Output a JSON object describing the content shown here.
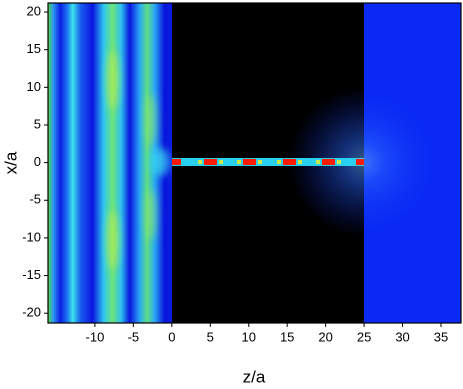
{
  "chart_data": {
    "type": "heatmap",
    "xlabel": "z/a",
    "ylabel": "x/a",
    "xlim": [
      -16.1,
      37.6
    ],
    "ylim": [
      -21.3,
      21.2
    ],
    "xticks": [
      -10,
      -5,
      0,
      5,
      10,
      15,
      20,
      25,
      30,
      35
    ],
    "yticks": [
      -20,
      -15,
      -10,
      -5,
      0,
      5,
      10,
      15,
      20
    ]
  }
}
